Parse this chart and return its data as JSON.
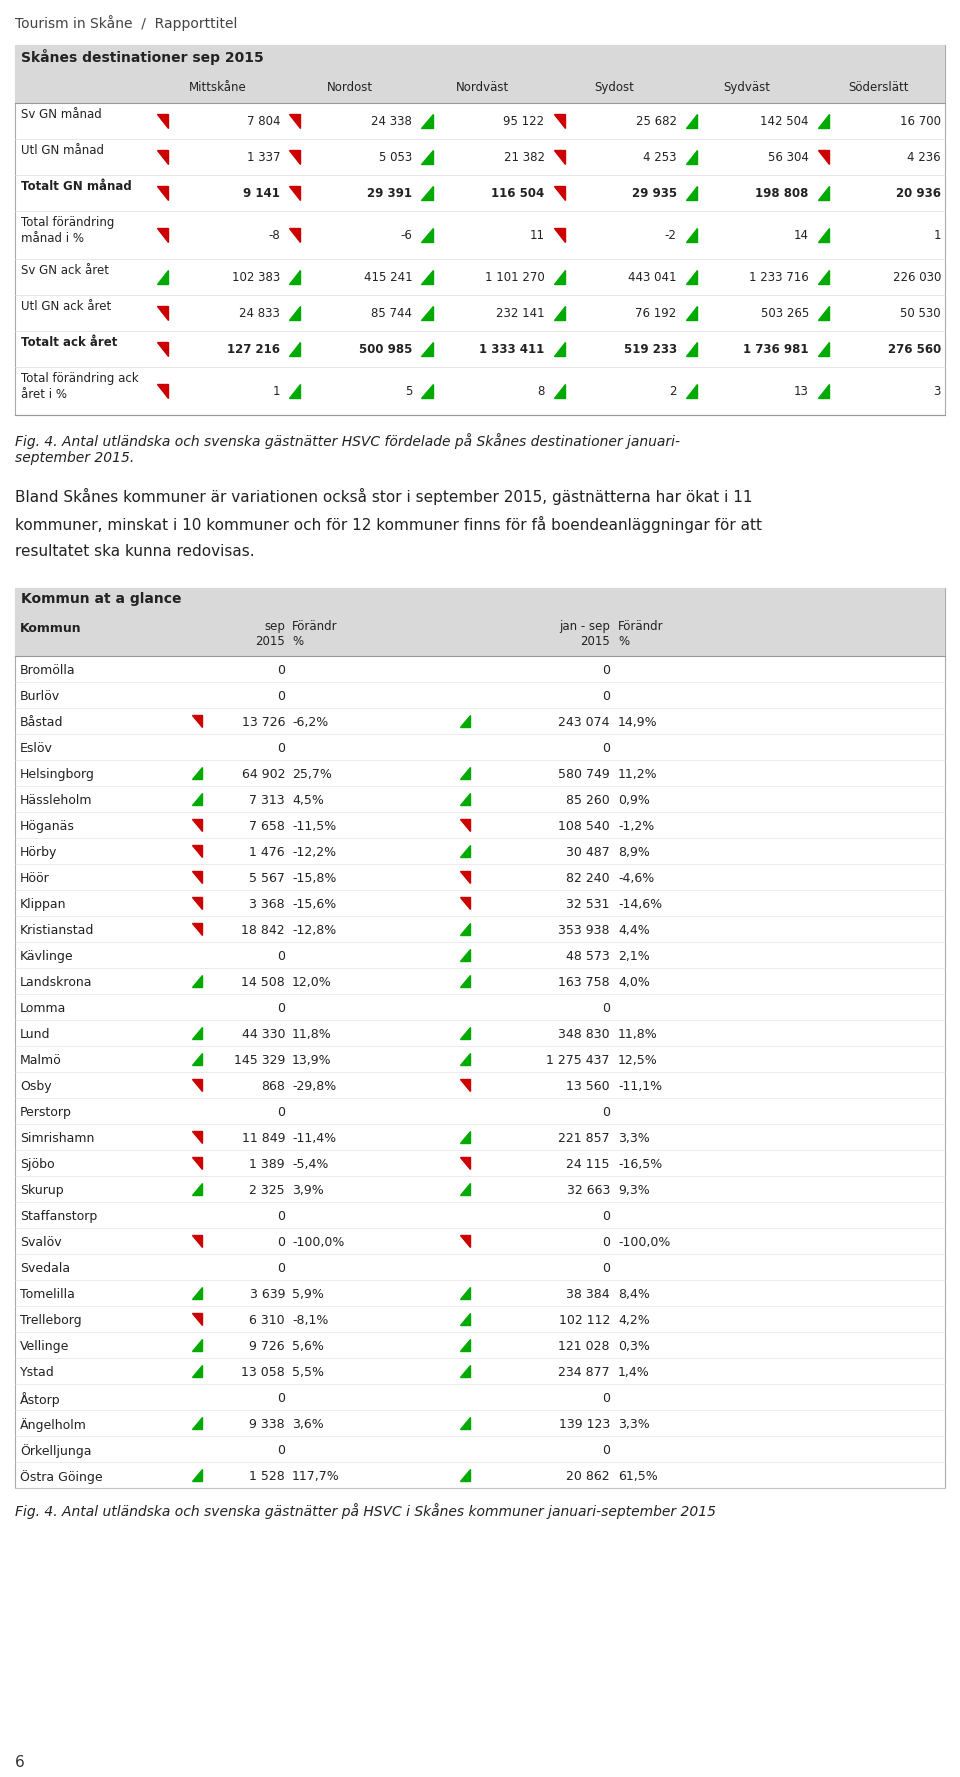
{
  "page_header": "Tourism in Skåne  /  Rapporttitel",
  "table1_title": "Skånes destinationer sep 2015",
  "table1_cols": [
    "",
    "Mittskåne",
    "Nordost",
    "Nordväst",
    "Sydost",
    "Sydväst",
    "Söderslätt"
  ],
  "table1_rows": [
    {
      "label": "Sv GN månad",
      "arrows": [
        "down_red",
        "down_red",
        "up_green",
        "down_red",
        "up_green",
        "up_green"
      ],
      "values": [
        "7 804",
        "24 338",
        "95 122",
        "25 682",
        "142 504",
        "16 700"
      ],
      "bold": false
    },
    {
      "label": "Utl GN månad",
      "arrows": [
        "down_red",
        "down_red",
        "up_green",
        "down_red",
        "up_green",
        "down_red"
      ],
      "values": [
        "1 337",
        "5 053",
        "21 382",
        "4 253",
        "56 304",
        "4 236"
      ],
      "bold": false
    },
    {
      "label": "Totalt GN månad",
      "arrows": [
        "down_red",
        "down_red",
        "up_green",
        "down_red",
        "up_green",
        "up_green"
      ],
      "values": [
        "9 141",
        "29 391",
        "116 504",
        "29 935",
        "198 808",
        "20 936"
      ],
      "bold": true
    },
    {
      "label": "Total förändring\nmånad i %",
      "arrows": [
        "down_red",
        "down_red",
        "up_green",
        "down_red",
        "up_green",
        "up_green"
      ],
      "values": [
        "-8",
        "-6",
        "11",
        "-2",
        "14",
        "1"
      ],
      "bold": false
    },
    {
      "label": "Sv GN ack året",
      "arrows": [
        "up_green",
        "up_green",
        "up_green",
        "up_green",
        "up_green",
        "up_green"
      ],
      "values": [
        "102 383",
        "415 241",
        "1 101 270",
        "443 041",
        "1 233 716",
        "226 030"
      ],
      "bold": false
    },
    {
      "label": "Utl GN ack året",
      "arrows": [
        "down_red",
        "up_green",
        "up_green",
        "up_green",
        "up_green",
        "up_green"
      ],
      "values": [
        "24 833",
        "85 744",
        "232 141",
        "76 192",
        "503 265",
        "50 530"
      ],
      "bold": false
    },
    {
      "label": "Totalt ack året",
      "arrows": [
        "down_red",
        "up_green",
        "up_green",
        "up_green",
        "up_green",
        "up_green"
      ],
      "values": [
        "127 216",
        "500 985",
        "1 333 411",
        "519 233",
        "1 736 981",
        "276 560"
      ],
      "bold": true
    },
    {
      "label": "Total förändring ack\nåret i %",
      "arrows": [
        "down_red",
        "up_green",
        "up_green",
        "up_green",
        "up_green",
        "up_green"
      ],
      "values": [
        "1",
        "5",
        "8",
        "2",
        "13",
        "3"
      ],
      "bold": false
    }
  ],
  "fig4_line1": "Fig. 4. Antal utländska och svenska gästnätter HSVC fördelade på Skånes destinationer januari-",
  "fig4_line2": "september 2015.",
  "body_line1": "Bland Skånes kommuner är variationen också stor i september 2015, gästnätterna har ökat i 11",
  "body_line2": "kommuner, minskat i 10 kommuner och för 12 kommuner finns för få boendeanläggningar för att",
  "body_line3": "resultatet ska kunna redovisas.",
  "table2_title": "Kommun at a glance",
  "table2_rows": [
    {
      "name": "Bromölla",
      "sep": "0",
      "sep_pct": "",
      "sep_arr": "",
      "jan": "0",
      "jan_pct": "",
      "jan_arr": ""
    },
    {
      "name": "Burlöv",
      "sep": "0",
      "sep_pct": "",
      "sep_arr": "",
      "jan": "0",
      "jan_pct": "",
      "jan_arr": ""
    },
    {
      "name": "Båstad",
      "sep": "13 726",
      "sep_pct": "-6,2%",
      "sep_arr": "down_red",
      "jan": "243 074",
      "jan_pct": "14,9%",
      "jan_arr": "up_green"
    },
    {
      "name": "Eslöv",
      "sep": "0",
      "sep_pct": "",
      "sep_arr": "",
      "jan": "0",
      "jan_pct": "",
      "jan_arr": ""
    },
    {
      "name": "Helsingborg",
      "sep": "64 902",
      "sep_pct": "25,7%",
      "sep_arr": "up_green",
      "jan": "580 749",
      "jan_pct": "11,2%",
      "jan_arr": "up_green"
    },
    {
      "name": "Hässleholm",
      "sep": "7 313",
      "sep_pct": "4,5%",
      "sep_arr": "up_green",
      "jan": "85 260",
      "jan_pct": "0,9%",
      "jan_arr": "up_green"
    },
    {
      "name": "Höganäs",
      "sep": "7 658",
      "sep_pct": "-11,5%",
      "sep_arr": "down_red",
      "jan": "108 540",
      "jan_pct": "-1,2%",
      "jan_arr": "down_red"
    },
    {
      "name": "Hörby",
      "sep": "1 476",
      "sep_pct": "-12,2%",
      "sep_arr": "down_red",
      "jan": "30 487",
      "jan_pct": "8,9%",
      "jan_arr": "up_green"
    },
    {
      "name": "Höör",
      "sep": "5 567",
      "sep_pct": "-15,8%",
      "sep_arr": "down_red",
      "jan": "82 240",
      "jan_pct": "-4,6%",
      "jan_arr": "down_red"
    },
    {
      "name": "Klippan",
      "sep": "3 368",
      "sep_pct": "-15,6%",
      "sep_arr": "down_red",
      "jan": "32 531",
      "jan_pct": "-14,6%",
      "jan_arr": "down_red"
    },
    {
      "name": "Kristianstad",
      "sep": "18 842",
      "sep_pct": "-12,8%",
      "sep_arr": "down_red",
      "jan": "353 938",
      "jan_pct": "4,4%",
      "jan_arr": "up_green"
    },
    {
      "name": "Kävlinge",
      "sep": "0",
      "sep_pct": "",
      "sep_arr": "",
      "jan": "48 573",
      "jan_pct": "2,1%",
      "jan_arr": "up_green"
    },
    {
      "name": "Landskrona",
      "sep": "14 508",
      "sep_pct": "12,0%",
      "sep_arr": "up_green",
      "jan": "163 758",
      "jan_pct": "4,0%",
      "jan_arr": "up_green"
    },
    {
      "name": "Lomma",
      "sep": "0",
      "sep_pct": "",
      "sep_arr": "",
      "jan": "0",
      "jan_pct": "",
      "jan_arr": ""
    },
    {
      "name": "Lund",
      "sep": "44 330",
      "sep_pct": "11,8%",
      "sep_arr": "up_green",
      "jan": "348 830",
      "jan_pct": "11,8%",
      "jan_arr": "up_green"
    },
    {
      "name": "Malmö",
      "sep": "145 329",
      "sep_pct": "13,9%",
      "sep_arr": "up_green",
      "jan": "1 275 437",
      "jan_pct": "12,5%",
      "jan_arr": "up_green"
    },
    {
      "name": "Osby",
      "sep": "868",
      "sep_pct": "-29,8%",
      "sep_arr": "down_red",
      "jan": "13 560",
      "jan_pct": "-11,1%",
      "jan_arr": "down_red"
    },
    {
      "name": "Perstorp",
      "sep": "0",
      "sep_pct": "",
      "sep_arr": "",
      "jan": "0",
      "jan_pct": "",
      "jan_arr": ""
    },
    {
      "name": "Simrishamn",
      "sep": "11 849",
      "sep_pct": "-11,4%",
      "sep_arr": "down_red",
      "jan": "221 857",
      "jan_pct": "3,3%",
      "jan_arr": "up_green"
    },
    {
      "name": "Sjöbo",
      "sep": "1 389",
      "sep_pct": "-5,4%",
      "sep_arr": "down_red",
      "jan": "24 115",
      "jan_pct": "-16,5%",
      "jan_arr": "down_red"
    },
    {
      "name": "Skurup",
      "sep": "2 325",
      "sep_pct": "3,9%",
      "sep_arr": "up_green",
      "jan": "32 663",
      "jan_pct": "9,3%",
      "jan_arr": "up_green"
    },
    {
      "name": "Staffanstorp",
      "sep": "0",
      "sep_pct": "",
      "sep_arr": "",
      "jan": "0",
      "jan_pct": "",
      "jan_arr": ""
    },
    {
      "name": "Svalöv",
      "sep": "0",
      "sep_pct": "-100,0%",
      "sep_arr": "down_red",
      "jan": "0",
      "jan_pct": "-100,0%",
      "jan_arr": "down_red"
    },
    {
      "name": "Svedala",
      "sep": "0",
      "sep_pct": "",
      "sep_arr": "",
      "jan": "0",
      "jan_pct": "",
      "jan_arr": ""
    },
    {
      "name": "Tomelilla",
      "sep": "3 639",
      "sep_pct": "5,9%",
      "sep_arr": "up_green",
      "jan": "38 384",
      "jan_pct": "8,4%",
      "jan_arr": "up_green"
    },
    {
      "name": "Trelleborg",
      "sep": "6 310",
      "sep_pct": "-8,1%",
      "sep_arr": "down_red",
      "jan": "102 112",
      "jan_pct": "4,2%",
      "jan_arr": "up_green"
    },
    {
      "name": "Vellinge",
      "sep": "9 726",
      "sep_pct": "5,6%",
      "sep_arr": "up_green",
      "jan": "121 028",
      "jan_pct": "0,3%",
      "jan_arr": "up_green"
    },
    {
      "name": "Ystad",
      "sep": "13 058",
      "sep_pct": "5,5%",
      "sep_arr": "up_green",
      "jan": "234 877",
      "jan_pct": "1,4%",
      "jan_arr": "up_green"
    },
    {
      "name": "Åstorp",
      "sep": "0",
      "sep_pct": "",
      "sep_arr": "",
      "jan": "0",
      "jan_pct": "",
      "jan_arr": ""
    },
    {
      "name": "Ängelholm",
      "sep": "9 338",
      "sep_pct": "3,6%",
      "sep_arr": "up_green",
      "jan": "139 123",
      "jan_pct": "3,3%",
      "jan_arr": "up_green"
    },
    {
      "name": "Örkelljunga",
      "sep": "0",
      "sep_pct": "",
      "sep_arr": "",
      "jan": "0",
      "jan_pct": "",
      "jan_arr": ""
    },
    {
      "name": "Östra Göinge",
      "sep": "1 528",
      "sep_pct": "117,7%",
      "sep_arr": "up_green",
      "jan": "20 862",
      "jan_pct": "61,5%",
      "jan_arr": "up_green"
    }
  ],
  "fig4b_caption": "Fig. 4. Antal utländska och svenska gästnätter på HSVC i Skånes kommuner januari-september 2015",
  "page_number": "6",
  "bg_color": "#ffffff",
  "table_header_bg": "#d9d9d9",
  "green": "#00aa00",
  "red": "#cc0000"
}
